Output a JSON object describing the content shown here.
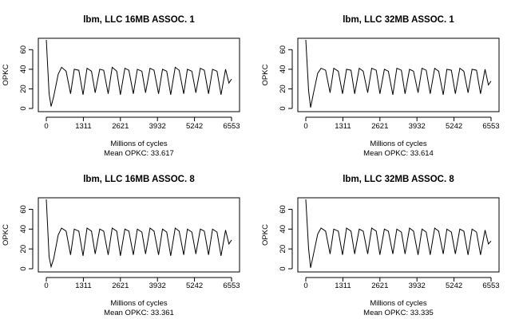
{
  "chart_data": [
    {
      "type": "line",
      "title": "lbm, LLC 16MB ASSOC. 1",
      "xlabel": "Millions of cycles",
      "ylabel": "OPKC",
      "subtitle": "Mean OPKC: 33.617",
      "xlim": [
        0,
        6553
      ],
      "ylim": [
        0,
        70
      ],
      "xticks": [
        0,
        1311,
        2621,
        3932,
        5242,
        6553
      ],
      "yticks": [
        0,
        20,
        40,
        60
      ],
      "grid": false,
      "series": [
        {
          "x": [
            0,
            100,
            170,
            260,
            420,
            540,
            700,
            860,
            990,
            1150,
            1300,
            1440,
            1600,
            1730,
            1890,
            2030,
            2190,
            2330,
            2490,
            2620,
            2780,
            2920,
            3080,
            3220,
            3380,
            3510,
            3670,
            3810,
            3970,
            4110,
            4260,
            4400,
            4560,
            4700,
            4860,
            4990,
            5150,
            5290,
            5450,
            5590,
            5740,
            5880,
            6040,
            6180,
            6340,
            6460,
            6553
          ],
          "y": [
            70,
            15,
            2,
            12,
            35,
            42,
            38,
            15,
            40,
            39,
            14,
            41,
            38,
            16,
            40,
            39,
            15,
            42,
            38,
            14,
            41,
            39,
            15,
            40,
            38,
            16,
            41,
            39,
            15,
            40,
            38,
            14,
            42,
            39,
            15,
            40,
            38,
            16,
            41,
            39,
            15,
            40,
            38,
            14,
            40,
            26,
            30
          ]
        }
      ]
    },
    {
      "type": "line",
      "title": "lbm, LLC 32MB ASSOC. 1",
      "xlabel": "Millions of cycles",
      "ylabel": "OPKC",
      "subtitle": "Mean OPKC: 33.614",
      "xlim": [
        0,
        6553
      ],
      "ylim": [
        0,
        70
      ],
      "xticks": [
        0,
        1311,
        2621,
        3932,
        5242,
        6553
      ],
      "yticks": [
        0,
        20,
        40,
        60
      ],
      "grid": false,
      "series": [
        {
          "x": [
            0,
            100,
            170,
            260,
            420,
            540,
            700,
            860,
            990,
            1150,
            1300,
            1440,
            1600,
            1730,
            1890,
            2030,
            2190,
            2330,
            2490,
            2620,
            2780,
            2920,
            3080,
            3220,
            3380,
            3510,
            3670,
            3810,
            3970,
            4110,
            4260,
            4400,
            4560,
            4700,
            4860,
            4990,
            5150,
            5290,
            5450,
            5590,
            5740,
            5880,
            6040,
            6180,
            6340,
            6460,
            6553
          ],
          "y": [
            70,
            18,
            1,
            14,
            36,
            41,
            39,
            16,
            41,
            38,
            15,
            40,
            39,
            15,
            41,
            38,
            16,
            41,
            39,
            15,
            40,
            38,
            14,
            41,
            39,
            15,
            40,
            38,
            16,
            41,
            39,
            15,
            41,
            38,
            14,
            40,
            39,
            15,
            41,
            38,
            16,
            40,
            39,
            15,
            40,
            24,
            28
          ]
        }
      ]
    },
    {
      "type": "line",
      "title": "lbm, LLC 16MB ASSOC. 8",
      "xlabel": "Millions of cycles",
      "ylabel": "OPKC",
      "subtitle": "Mean OPKC: 33.361",
      "xlim": [
        0,
        6553
      ],
      "ylim": [
        0,
        70
      ],
      "xticks": [
        0,
        1311,
        2621,
        3932,
        5242,
        6553
      ],
      "yticks": [
        0,
        20,
        40,
        60
      ],
      "grid": false,
      "series": [
        {
          "x": [
            0,
            100,
            170,
            260,
            420,
            540,
            700,
            860,
            990,
            1150,
            1300,
            1440,
            1600,
            1730,
            1890,
            2030,
            2190,
            2330,
            2490,
            2620,
            2780,
            2920,
            3080,
            3220,
            3380,
            3510,
            3670,
            3810,
            3970,
            4110,
            4260,
            4400,
            4560,
            4700,
            4860,
            4990,
            5150,
            5290,
            5450,
            5590,
            5740,
            5880,
            6040,
            6180,
            6340,
            6460,
            6553
          ],
          "y": [
            70,
            12,
            2,
            10,
            34,
            41,
            38,
            14,
            40,
            38,
            13,
            41,
            38,
            15,
            40,
            38,
            14,
            41,
            38,
            13,
            40,
            38,
            14,
            40,
            37,
            15,
            41,
            38,
            14,
            40,
            37,
            13,
            41,
            38,
            14,
            40,
            37,
            15,
            40,
            38,
            14,
            40,
            37,
            13,
            39,
            25,
            29
          ]
        }
      ]
    },
    {
      "type": "line",
      "title": "lbm, LLC 32MB ASSOC. 8",
      "xlabel": "Millions of cycles",
      "ylabel": "OPKC",
      "subtitle": "Mean OPKC: 33.335",
      "xlim": [
        0,
        6553
      ],
      "ylim": [
        0,
        70
      ],
      "xticks": [
        0,
        1311,
        2621,
        3932,
        5242,
        6553
      ],
      "yticks": [
        0,
        20,
        40,
        60
      ],
      "grid": false,
      "series": [
        {
          "x": [
            0,
            100,
            170,
            260,
            420,
            540,
            700,
            860,
            990,
            1150,
            1300,
            1440,
            1600,
            1730,
            1890,
            2030,
            2190,
            2330,
            2490,
            2620,
            2780,
            2920,
            3080,
            3220,
            3380,
            3510,
            3670,
            3810,
            3970,
            4110,
            4260,
            4400,
            4560,
            4700,
            4860,
            4990,
            5150,
            5290,
            5450,
            5590,
            5740,
            5880,
            6040,
            6180,
            6340,
            6460,
            6553
          ],
          "y": [
            70,
            20,
            1,
            13,
            35,
            41,
            38,
            15,
            40,
            38,
            14,
            41,
            38,
            15,
            40,
            38,
            15,
            41,
            38,
            14,
            40,
            38,
            15,
            40,
            37,
            15,
            41,
            38,
            14,
            40,
            37,
            14,
            41,
            38,
            15,
            40,
            37,
            15,
            40,
            38,
            14,
            40,
            37,
            14,
            39,
            25,
            28
          ]
        }
      ]
    }
  ]
}
